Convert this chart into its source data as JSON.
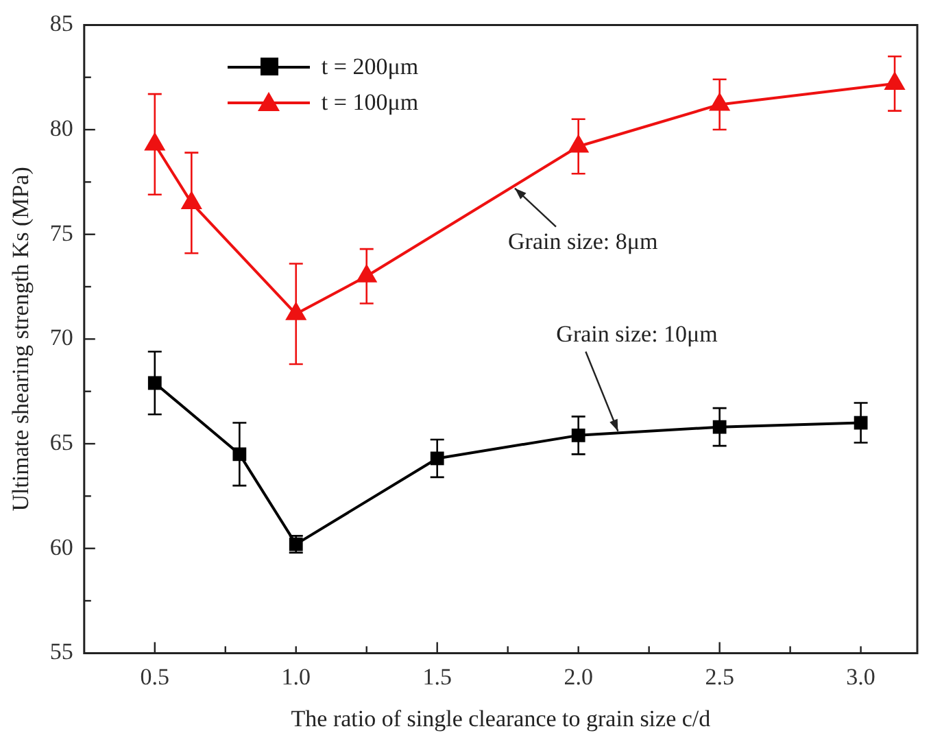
{
  "chart_data": {
    "type": "line",
    "xlabel": "The ratio of single clearance to grain size c/d",
    "ylabel": "Ultimate shearing strength Ks (MPa)",
    "xlim": [
      0.25,
      3.2
    ],
    "xticks": [
      0.5,
      {
        "value": 0.75,
        "label": null
      },
      {
        "value": 1,
        "label": "1.0"
      },
      {
        "value": 1.25,
        "label": null
      },
      1.5,
      {
        "value": 1.75,
        "label": null
      },
      {
        "value": 2,
        "label": "2.0"
      },
      {
        "value": 2.25,
        "label": null
      },
      2.5,
      {
        "value": 2.75,
        "label": null
      },
      {
        "value": 3,
        "label": "3.0"
      }
    ],
    "ylim": [
      55,
      85
    ],
    "yticks": [
      55,
      {
        "value": 57.5,
        "label": null
      },
      60,
      {
        "value": 62.5,
        "label": null
      },
      65,
      {
        "value": 67.5,
        "label": null
      },
      70,
      {
        "value": 72.5,
        "label": null
      },
      75,
      {
        "value": 77.5,
        "label": null
      },
      80,
      {
        "value": 82.5,
        "label": null
      },
      85
    ],
    "grid": false,
    "legend": "top left",
    "line_style": "solid",
    "series": [
      {
        "name": "t = 200μm",
        "color": "#000000",
        "marker": "square",
        "x": [
          0.5,
          0.8,
          1.0,
          1.5,
          2.0,
          2.5,
          3.0
        ],
        "values": [
          67.9,
          64.5,
          60.2,
          64.3,
          65.4,
          65.8,
          66.0
        ],
        "errors": [
          1.5,
          1.5,
          0.4,
          0.9,
          0.9,
          0.9,
          0.95
        ]
      },
      {
        "name": "t = 100μm",
        "color": "#ee1111",
        "marker": "triangle",
        "x": [
          0.5,
          0.63,
          1.0,
          1.25,
          2.0,
          2.5,
          3.12
        ],
        "values": [
          79.3,
          76.5,
          71.2,
          73.0,
          79.2,
          81.2,
          82.2
        ],
        "errors": [
          2.4,
          2.4,
          2.4,
          1.3,
          1.3,
          1.2,
          1.3
        ]
      }
    ],
    "annotations": [
      {
        "text": "Grain size: 8μm",
        "x": 1.775,
        "y": 77.2
      },
      {
        "text": "Grain size: 10μm",
        "x": 2.14,
        "y": 65.6
      }
    ]
  }
}
